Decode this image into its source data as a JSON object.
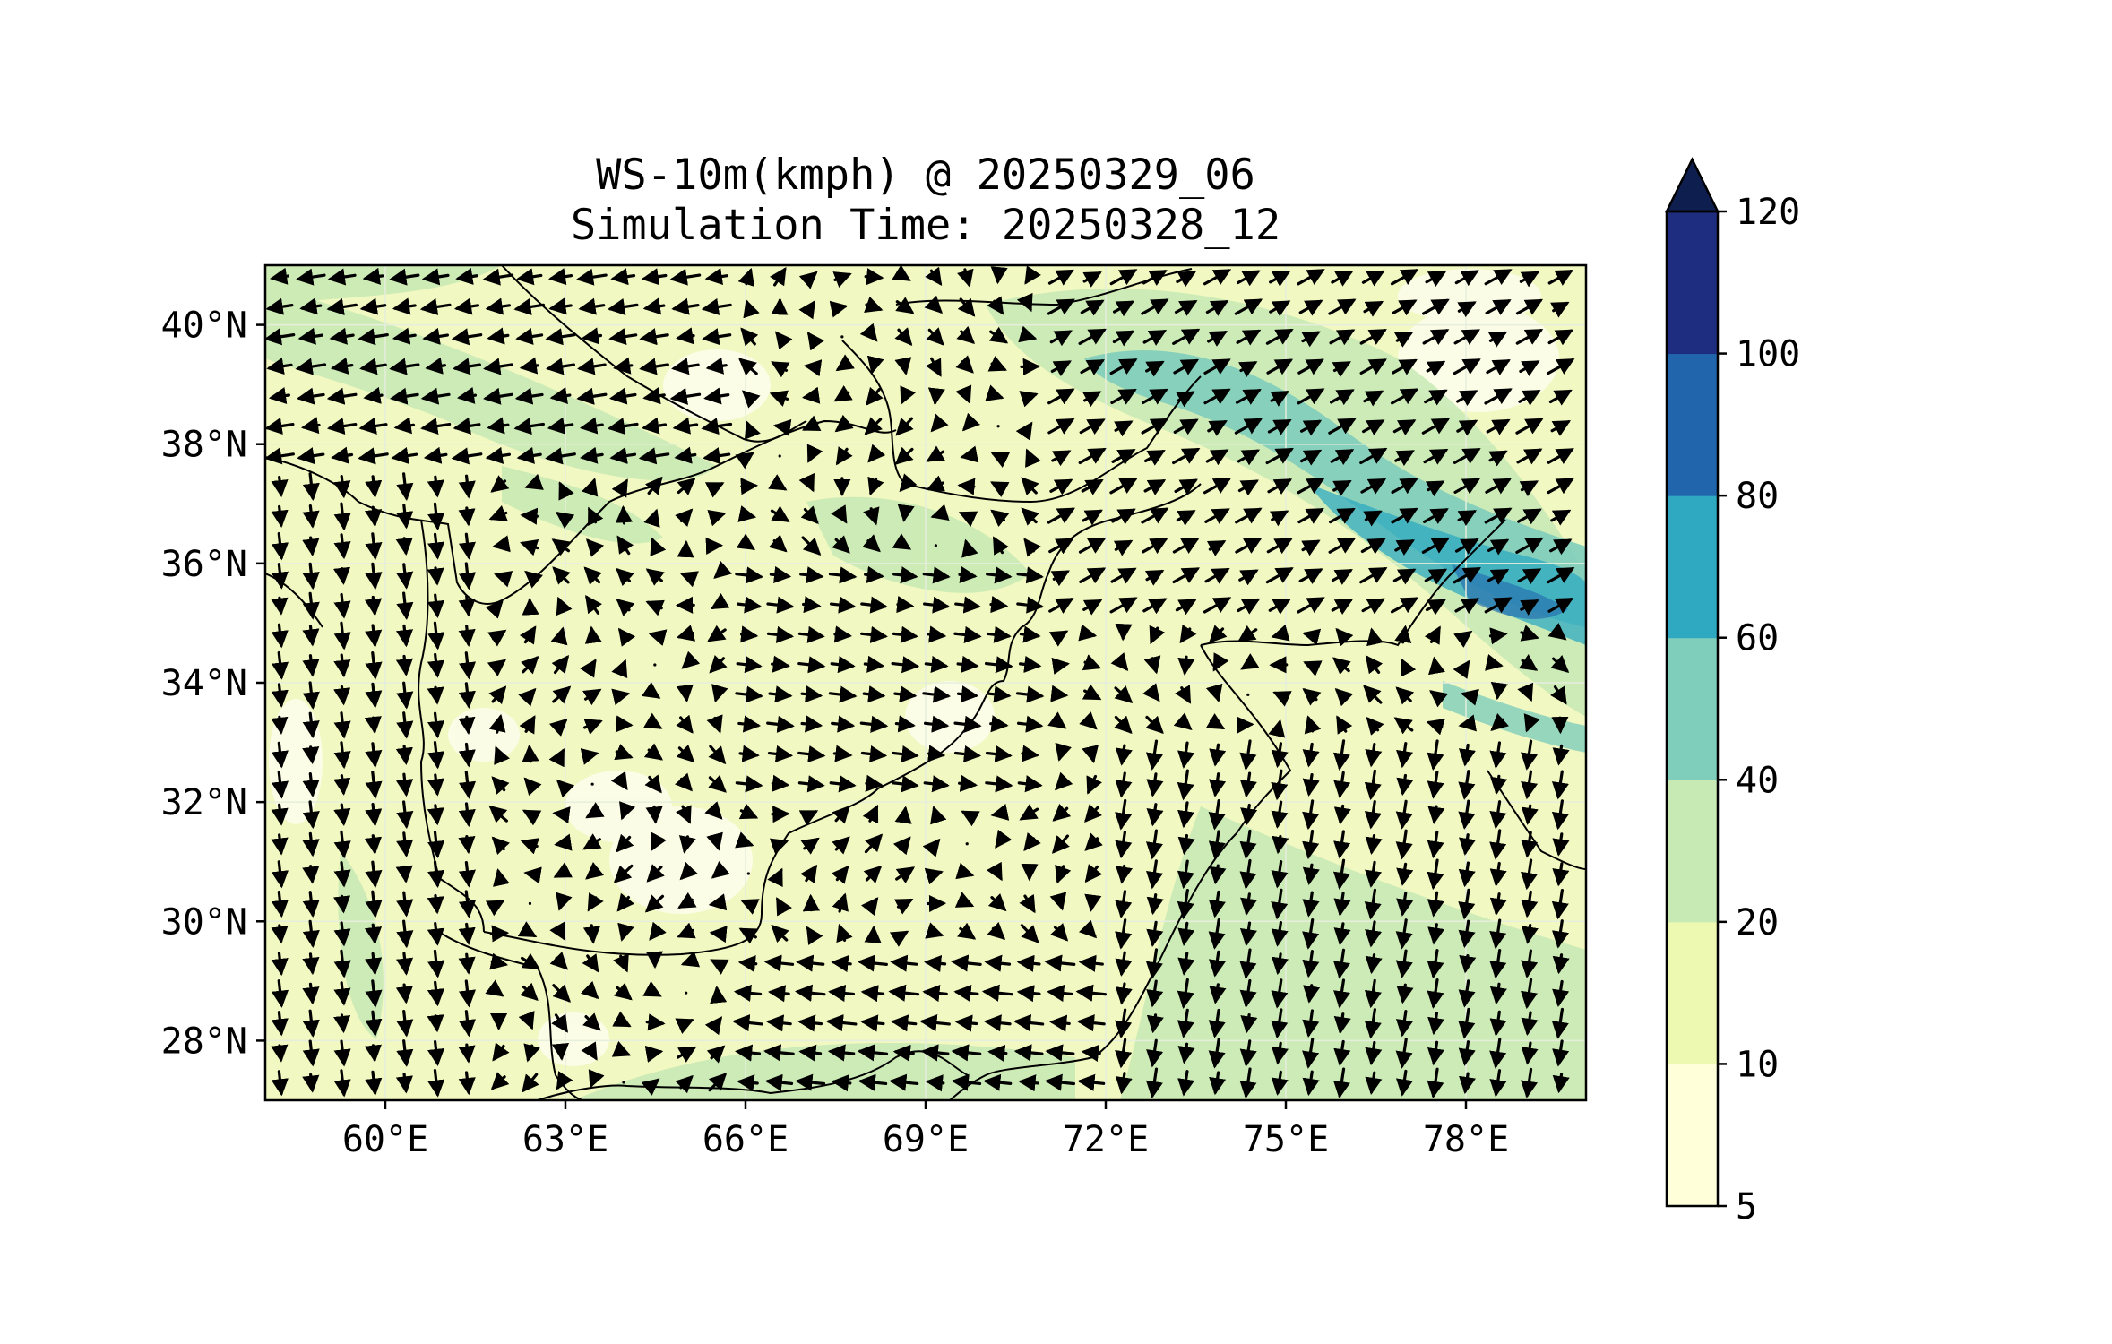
{
  "title": "WS-10m(kmph) @ 20250329_06",
  "subtitle": "Simulation Time: 20250328_12",
  "map": {
    "projection": "PlateCarree",
    "lon_range": [
      58,
      80
    ],
    "lat_range": [
      27,
      41
    ],
    "lon_ticks": [
      "60°E",
      "63°E",
      "66°E",
      "69°E",
      "72°E",
      "75°E",
      "78°E"
    ],
    "lat_ticks": [
      "28°N",
      "30°N",
      "32°N",
      "34°N",
      "36°N",
      "38°N",
      "40°N"
    ],
    "field": "10 m wind speed (kmph) with wind direction arrows",
    "background_color": "#f1f8c1"
  },
  "colorbar": {
    "levels": [
      "5",
      "10",
      "20",
      "40",
      "60",
      "80",
      "100",
      "120"
    ],
    "colors": [
      "#ffffd9",
      "#edf8b1",
      "#c7e9b4",
      "#7fcdbb",
      "#2ea9c1",
      "#2166ac",
      "#1f2d80"
    ],
    "extend_color": "#0e1f4f",
    "extend": "max"
  }
}
